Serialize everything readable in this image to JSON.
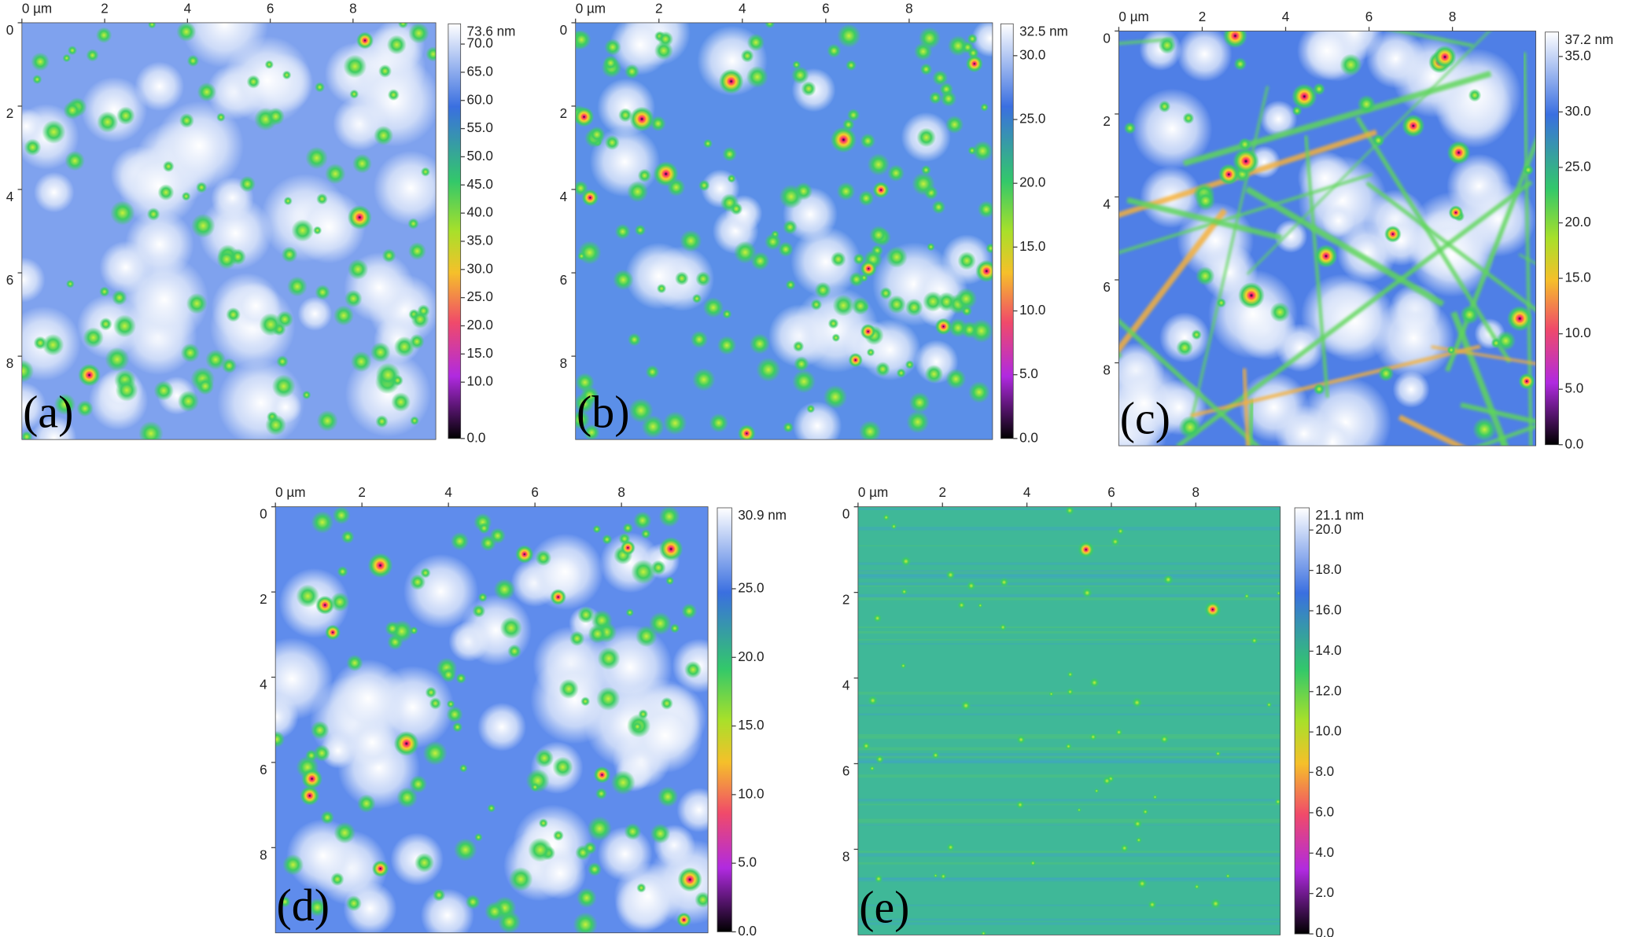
{
  "panels": [
    {
      "label": "(a)",
      "xlim": [
        0,
        10
      ],
      "ylim": [
        0,
        10
      ],
      "xticks": [
        {
          "value": 0,
          "label": "0 µm"
        },
        2,
        4,
        6,
        8
      ],
      "yticks": [
        0,
        2,
        4,
        6,
        8
      ],
      "colorbar": {
        "title": "73.6 nm",
        "lim": [
          0,
          73.6
        ],
        "ticks": [
          {
            "value": 70,
            "label": "70.0"
          },
          {
            "value": 65,
            "label": "65.0"
          },
          {
            "value": 60,
            "label": "60.0"
          },
          {
            "value": 55,
            "label": "55.0"
          },
          {
            "value": 50,
            "label": "50.0"
          },
          {
            "value": 45,
            "label": "45.0"
          },
          {
            "value": 40,
            "label": "40.0"
          },
          {
            "value": 35,
            "label": "35.0"
          },
          {
            "value": 30,
            "label": "30.0"
          },
          {
            "value": 25,
            "label": "25.0"
          },
          {
            "value": 20,
            "label": "20.0"
          },
          {
            "value": 15,
            "label": "15.0"
          },
          {
            "value": 10,
            "label": "10.0"
          },
          {
            "value": 0,
            "label": "0.0"
          }
        ]
      }
    },
    {
      "label": "(b)",
      "xlim": [
        0,
        10
      ],
      "ylim": [
        0,
        10
      ],
      "xticks": [
        {
          "value": 0,
          "label": "0 µm"
        },
        2,
        4,
        6,
        8
      ],
      "yticks": [
        0,
        2,
        4,
        6,
        8
      ],
      "colorbar": {
        "title": "32.5 nm",
        "lim": [
          0,
          32.5
        ],
        "ticks": [
          {
            "value": 30,
            "label": "30.0"
          },
          {
            "value": 25,
            "label": "25.0"
          },
          {
            "value": 20,
            "label": "20.0"
          },
          {
            "value": 15,
            "label": "15.0"
          },
          {
            "value": 10,
            "label": "10.0"
          },
          {
            "value": 5,
            "label": "5.0"
          },
          {
            "value": 0,
            "label": "0.0"
          }
        ]
      }
    },
    {
      "label": "(c)",
      "xlim": [
        0,
        10
      ],
      "ylim": [
        0,
        10
      ],
      "xticks": [
        {
          "value": 0,
          "label": "0 µm"
        },
        2,
        4,
        6,
        8
      ],
      "yticks": [
        0,
        2,
        4,
        6,
        8
      ],
      "colorbar": {
        "title": "37.2 nm",
        "lim": [
          0,
          37.2
        ],
        "ticks": [
          {
            "value": 35,
            "label": "35.0"
          },
          {
            "value": 30,
            "label": "30.0"
          },
          {
            "value": 25,
            "label": "25.0"
          },
          {
            "value": 20,
            "label": "20.0"
          },
          {
            "value": 15,
            "label": "15.0"
          },
          {
            "value": 10,
            "label": "10.0"
          },
          {
            "value": 5,
            "label": "5.0"
          },
          {
            "value": 0,
            "label": "0.0"
          }
        ]
      }
    },
    {
      "label": "(d)",
      "xlim": [
        0,
        10
      ],
      "ylim": [
        0,
        10
      ],
      "xticks": [
        {
          "value": 0,
          "label": "0 µm"
        },
        2,
        4,
        6,
        8
      ],
      "yticks": [
        0,
        2,
        4,
        6,
        8
      ],
      "colorbar": {
        "title": "30.9 nm",
        "lim": [
          0,
          30.9
        ],
        "ticks": [
          {
            "value": 25,
            "label": "25.0"
          },
          {
            "value": 20,
            "label": "20.0"
          },
          {
            "value": 15,
            "label": "15.0"
          },
          {
            "value": 10,
            "label": "10.0"
          },
          {
            "value": 5,
            "label": "5.0"
          },
          {
            "value": 0,
            "label": "0.0"
          }
        ]
      }
    },
    {
      "label": "(e)",
      "xlim": [
        0,
        10
      ],
      "ylim": [
        0,
        10
      ],
      "xticks": [
        {
          "value": 0,
          "label": "0 µm"
        },
        2,
        4,
        6,
        8
      ],
      "yticks": [
        0,
        2,
        4,
        6,
        8
      ],
      "colorbar": {
        "title": "21.1 nm",
        "lim": [
          0,
          21.1
        ],
        "ticks": [
          {
            "value": 20,
            "label": "20.0"
          },
          {
            "value": 18,
            "label": "18.0"
          },
          {
            "value": 16,
            "label": "16.0"
          },
          {
            "value": 14,
            "label": "14.0"
          },
          {
            "value": 12,
            "label": "12.0"
          },
          {
            "value": 10,
            "label": "10.0"
          },
          {
            "value": 8,
            "label": "8.0"
          },
          {
            "value": 6,
            "label": "6.0"
          },
          {
            "value": 4,
            "label": "4.0"
          },
          {
            "value": 2,
            "label": "2.0"
          },
          {
            "value": 0,
            "label": "0.0"
          }
        ]
      }
    }
  ]
}
